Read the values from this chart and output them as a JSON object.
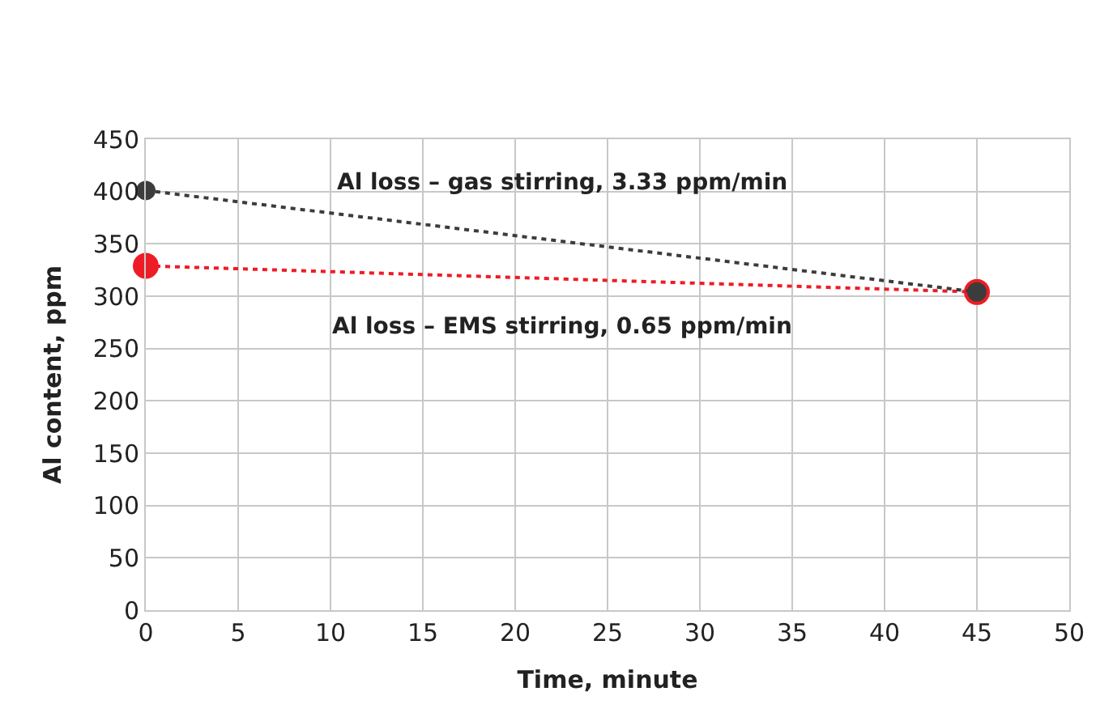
{
  "chart_data": {
    "type": "line",
    "xlabel": "Time, minute",
    "ylabel": "Al content, ppm",
    "series": [
      {
        "color": "#ee1c25",
        "values": [
          329,
          304
        ]
      },
      {
        "color": "#3c3c3c",
        "values": [
          401,
          304
        ]
      }
    ],
    "x": [
      0,
      45
    ],
    "xlim": [
      0,
      50
    ],
    "xticks": [
      0,
      5,
      10,
      15,
      20,
      25,
      30,
      35,
      40,
      45,
      50
    ],
    "ylim": [
      0,
      450
    ],
    "yticks": [
      0,
      50,
      100,
      150,
      200,
      250,
      300,
      350,
      400,
      450
    ],
    "grid": true,
    "marker": "circle",
    "line_style": "dotted",
    "annotations": [
      "Al loss – gas stirring, 3.33 ppm/min",
      "Al loss – EMS stirring, 0.65 ppm/min"
    ]
  }
}
